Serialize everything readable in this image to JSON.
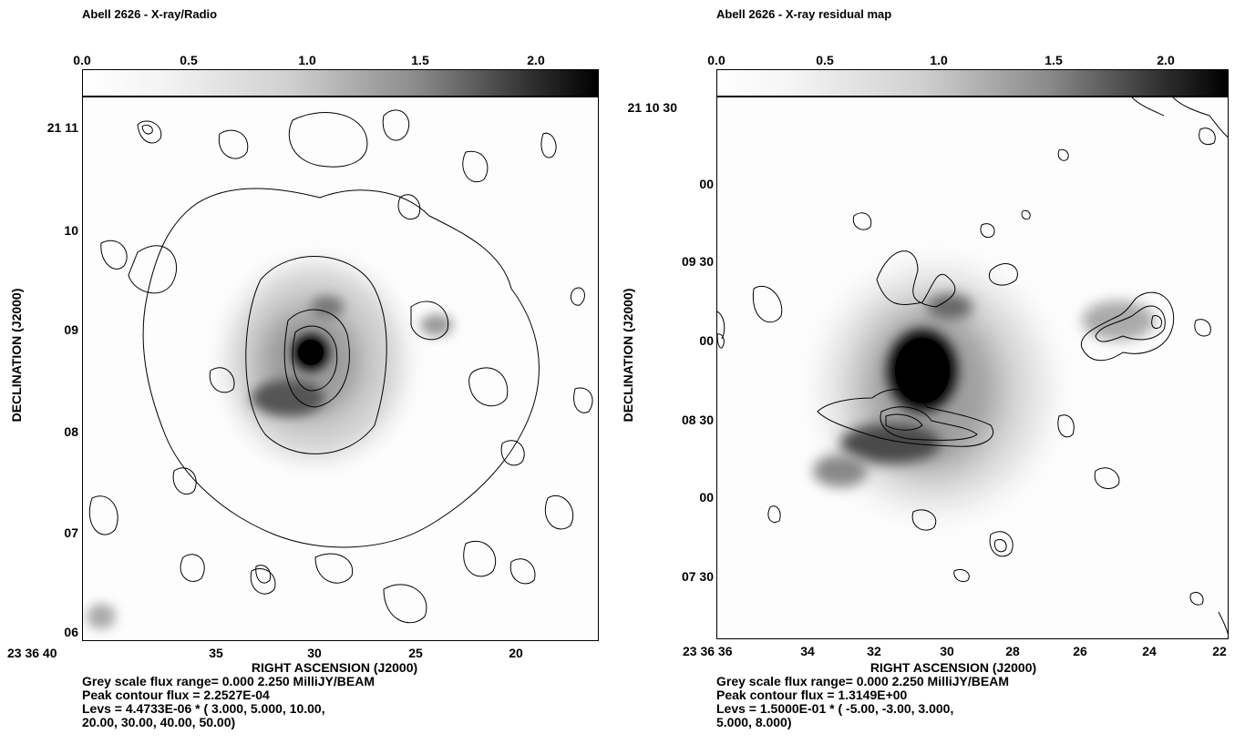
{
  "panels": [
    {
      "title": "Abell 2626 - X-ray/Radio",
      "colorbar_ticks": [
        "0.0",
        "0.5",
        "1.0",
        "1.5",
        "2.0"
      ],
      "y_ticks": [
        "21 11",
        "10",
        "09",
        "08",
        "07",
        "06"
      ],
      "x_ticks": [
        "23 36 40",
        "35",
        "30",
        "25",
        "20"
      ],
      "xlabel": "RIGHT ASCENSION (J2000)",
      "ylabel": "DECLINATION (J2000)",
      "caption": {
        "line1": "Grey scale flux range=   0.000   2.250 MilliJY/BEAM",
        "line2": "Peak contour flux =  2.2527E-04",
        "line3": "Levs =  4.4733E-06 * (  3.000, 5.000, 10.00,",
        "line4": " 20.00, 30.00, 40.00, 50.00)"
      }
    },
    {
      "title": "Abell 2626 - X-ray residual map",
      "colorbar_ticks": [
        "0.0",
        "0.5",
        "1.0",
        "1.5",
        "2.0"
      ],
      "y_ticks": [
        "21 10 30",
        "00",
        "09 30",
        "00",
        "08 30",
        "00",
        "07 30"
      ],
      "x_ticks": [
        "23 36 36",
        "34",
        "32",
        "30",
        "28",
        "26",
        "24",
        "22"
      ],
      "xlabel": "RIGHT ASCENSION (J2000)",
      "ylabel": "DECLINATION (J2000)",
      "caption": {
        "line1": "Grey scale flux range=   0.000   2.250 MilliJY/BEAM",
        "line2": "Peak contour flux =  1.3149E+00",
        "line3": "Levs =  1.5000E-01 * (  -5.00, -3.00, 3.000,",
        "line4": " 5.000, 8.000)"
      }
    }
  ]
}
